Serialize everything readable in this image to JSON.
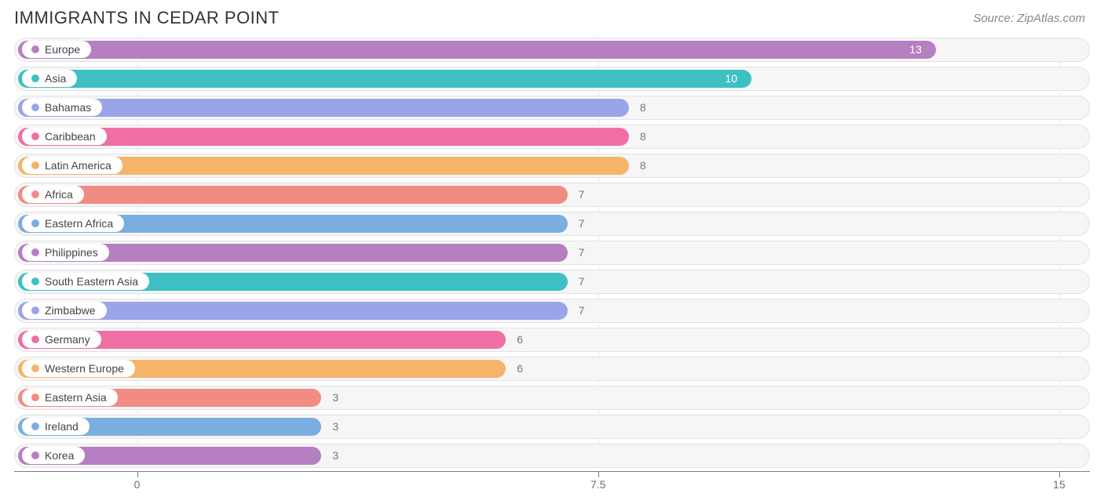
{
  "title": "IMMIGRANTS IN CEDAR POINT",
  "source": "Source: ZipAtlas.com",
  "chart": {
    "type": "bar-horizontal",
    "xmin": -2,
    "xmax": 15.5,
    "xticks": [
      0,
      7.5,
      15
    ],
    "background_color": "#ffffff",
    "track_color": "#f6f6f6",
    "track_border": "#e2e2e2",
    "axis_color": "#7d7d7d",
    "grid_color": "#e9e9e9",
    "label_fontsize": 14,
    "title_fontsize": 22,
    "bar_height": 34.5,
    "series": [
      {
        "label": "Europe",
        "value": 13,
        "color": "#b67fc1",
        "value_inside": true
      },
      {
        "label": "Asia",
        "value": 10,
        "color": "#3ec0c2",
        "value_inside": true
      },
      {
        "label": "Bahamas",
        "value": 8,
        "color": "#9aa4e8",
        "value_inside": false
      },
      {
        "label": "Caribbean",
        "value": 8,
        "color": "#ef6fa5",
        "value_inside": false
      },
      {
        "label": "Latin America",
        "value": 8,
        "color": "#f5b46a",
        "value_inside": false
      },
      {
        "label": "Africa",
        "value": 7,
        "color": "#f18c82",
        "value_inside": false
      },
      {
        "label": "Eastern Africa",
        "value": 7,
        "color": "#7aaee0",
        "value_inside": false
      },
      {
        "label": "Philippines",
        "value": 7,
        "color": "#b67fc1",
        "value_inside": false
      },
      {
        "label": "South Eastern Asia",
        "value": 7,
        "color": "#3ec0c2",
        "value_inside": false
      },
      {
        "label": "Zimbabwe",
        "value": 7,
        "color": "#9aa4e8",
        "value_inside": false
      },
      {
        "label": "Germany",
        "value": 6,
        "color": "#ef6fa5",
        "value_inside": false
      },
      {
        "label": "Western Europe",
        "value": 6,
        "color": "#f5b46a",
        "value_inside": false
      },
      {
        "label": "Eastern Asia",
        "value": 3,
        "color": "#f18c82",
        "value_inside": false
      },
      {
        "label": "Ireland",
        "value": 3,
        "color": "#7aaee0",
        "value_inside": false
      },
      {
        "label": "Korea",
        "value": 3,
        "color": "#b67fc1",
        "value_inside": false
      }
    ]
  }
}
